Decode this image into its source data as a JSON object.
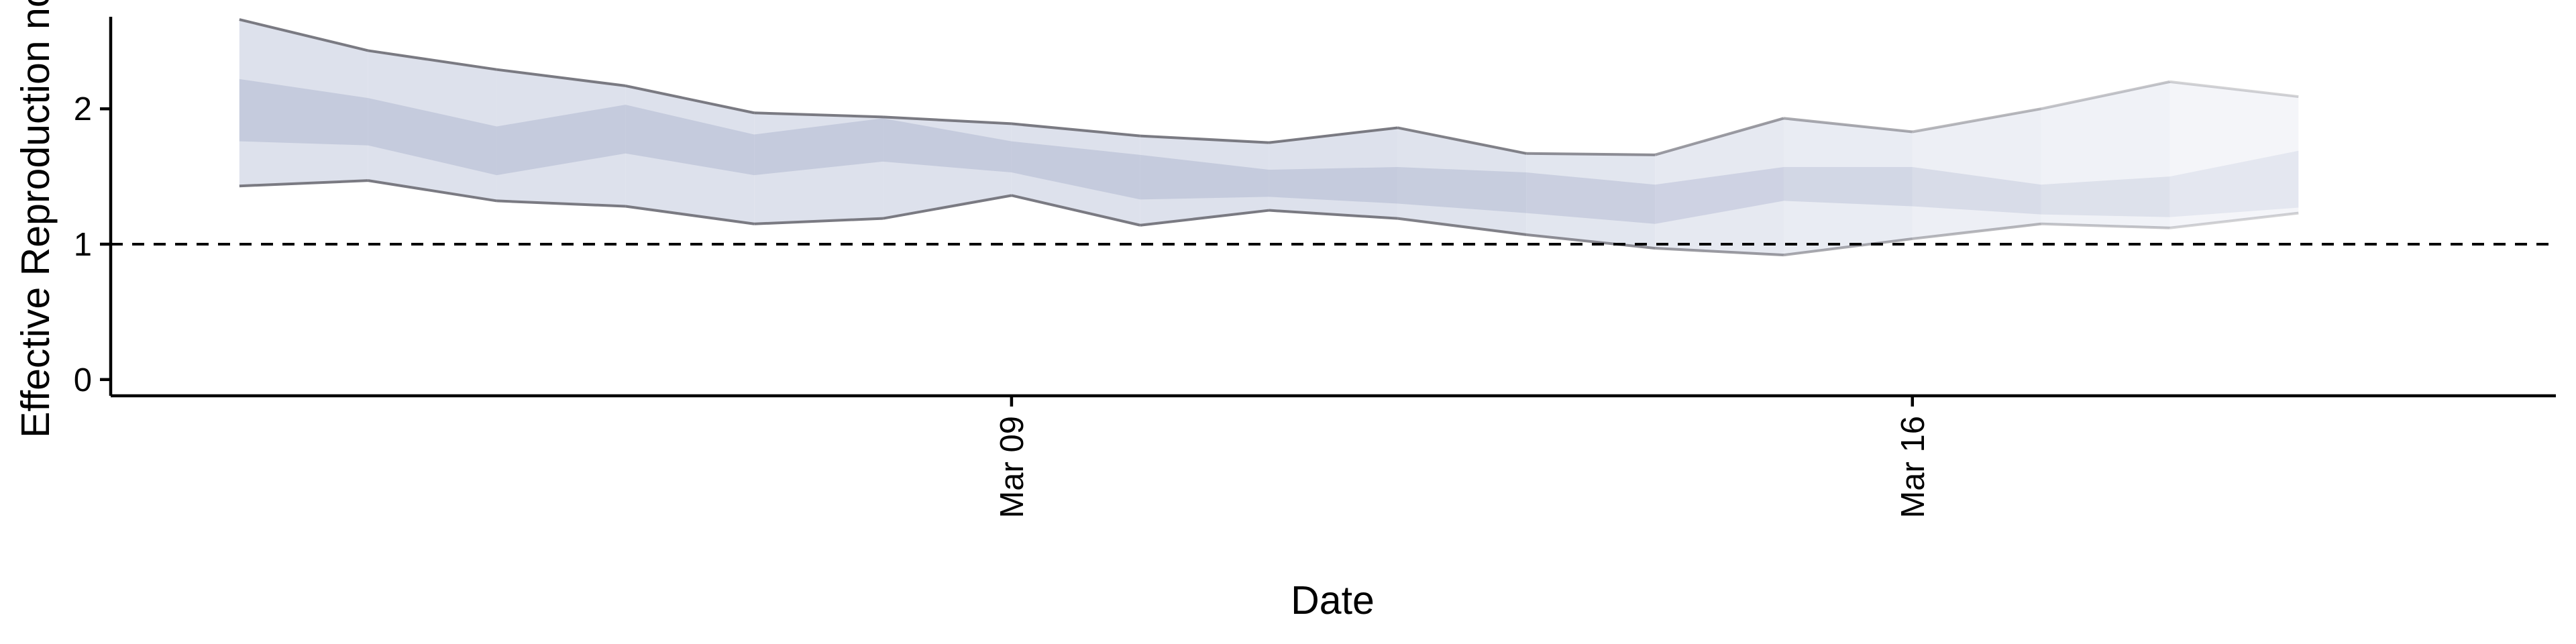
{
  "chart_data": {
    "type": "area",
    "title": "",
    "xlabel": "Date",
    "ylabel": "Effective Reproduction no.",
    "x_type": "date",
    "x": [
      "2020-03-03",
      "2020-03-04",
      "2020-03-05",
      "2020-03-06",
      "2020-03-07",
      "2020-03-08",
      "2020-03-09",
      "2020-03-10",
      "2020-03-11",
      "2020-03-12",
      "2020-03-13",
      "2020-03-14",
      "2020-03-15",
      "2020-03-16",
      "2020-03-17",
      "2020-03-18",
      "2020-03-19",
      "2020-03-20",
      "2020-03-21"
    ],
    "x_ticks": [
      "Mar 09",
      "Mar 16"
    ],
    "x_tick_dates": [
      "2020-03-09",
      "2020-03-16"
    ],
    "xlim": [
      "2020-03-02",
      "2020-03-21"
    ],
    "y_ticks": [
      0,
      1,
      2
    ],
    "ylim": [
      -0.12,
      2.68
    ],
    "reference_line": {
      "y": 1,
      "style": "dashed",
      "color": "#000000"
    },
    "series": [
      {
        "kind": "outer-band",
        "upper": [
          2.66,
          2.43,
          2.29,
          2.17,
          1.97,
          1.94,
          1.89,
          1.8,
          1.75,
          1.86,
          1.67,
          1.66,
          1.93,
          1.83,
          2.0,
          2.2,
          2.09
        ],
        "lower": [
          1.43,
          1.47,
          1.32,
          1.28,
          1.15,
          1.19,
          1.36,
          1.14,
          1.25,
          1.19,
          1.07,
          0.97,
          0.92,
          1.04,
          1.15,
          1.12,
          1.23
        ],
        "fill": "#dde1ec",
        "line": "#7a7a82"
      },
      {
        "kind": "inner-band",
        "upper": [
          2.22,
          2.08,
          1.87,
          2.03,
          1.81,
          1.93,
          1.76,
          1.66,
          1.55,
          1.57,
          1.53,
          1.44,
          1.57,
          1.57,
          1.44,
          1.5,
          1.69
        ],
        "lower": [
          1.76,
          1.73,
          1.51,
          1.67,
          1.51,
          1.61,
          1.53,
          1.33,
          1.35,
          1.3,
          1.23,
          1.15,
          1.32,
          1.28,
          1.22,
          1.2,
          1.27
        ],
        "fill": "#c5cbdd"
      }
    ],
    "x_index": [
      0,
      1,
      2,
      3,
      4,
      5,
      6,
      7,
      8,
      9,
      10,
      11,
      12,
      13,
      14,
      15,
      16
    ],
    "series_dates": [
      "2020-03-03",
      "2020-03-04",
      "2020-03-05",
      "2020-03-06",
      "2020-03-07",
      "2020-03-08",
      "2020-03-09",
      "2020-03-10",
      "2020-03-11",
      "2020-03-12",
      "2020-03-13",
      "2020-03-14",
      "2020-03-15",
      "2020-03-16",
      "2020-03-17",
      "2020-03-18",
      "2020-03-19"
    ],
    "fade_after_index": 9,
    "grid": false,
    "legend": "none"
  }
}
